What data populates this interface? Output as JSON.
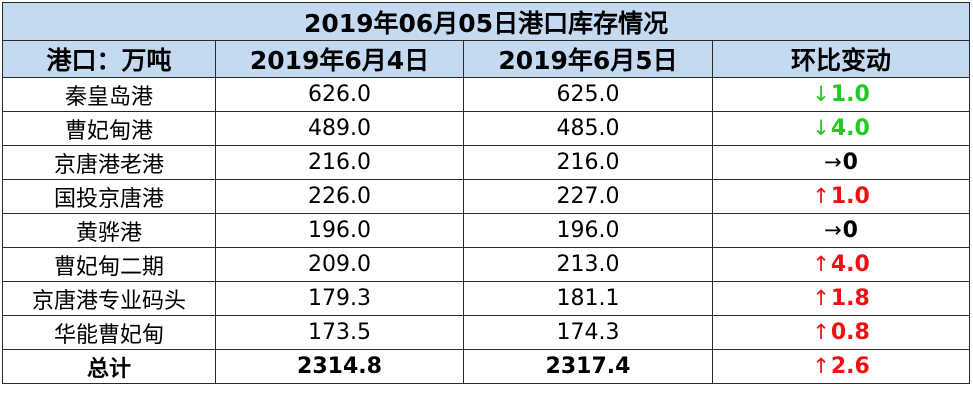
{
  "title": "2019年06月05日港口库存情况",
  "headers": [
    "港口：万吨",
    "2019年6月4日",
    "2019年6月5日",
    "环比变动"
  ],
  "rows": [
    {
      "port": "秦皇岛港",
      "jun4": "626.0",
      "jun5": "625.0",
      "arrow": "↓",
      "change": "1.0",
      "direction": "down"
    },
    {
      "port": "曹妃甸港",
      "jun4": "489.0",
      "jun5": "485.0",
      "arrow": "↓",
      "change": "4.0",
      "direction": "down"
    },
    {
      "port": "京唐港老港",
      "jun4": "216.0",
      "jun5": "216.0",
      "arrow": "→",
      "change": "0",
      "direction": "flat"
    },
    {
      "port": "国投京唐港",
      "jun4": "226.0",
      "jun5": "227.0",
      "arrow": "↑",
      "change": "1.0",
      "direction": "up"
    },
    {
      "port": "黄骅港",
      "jun4": "196.0",
      "jun5": "196.0",
      "arrow": "→",
      "change": "0",
      "direction": "flat"
    },
    {
      "port": "曹妃甸二期",
      "jun4": "209.0",
      "jun5": "213.0",
      "arrow": "↑",
      "change": "4.0",
      "direction": "up"
    },
    {
      "port": "京唐港专业码头",
      "jun4": "179.3",
      "jun5": "181.1",
      "arrow": "↑",
      "change": "1.8",
      "direction": "up"
    },
    {
      "port": "华能曹妃甸",
      "jun4": "173.5",
      "jun5": "174.3",
      "arrow": "↑",
      "change": "0.8",
      "direction": "up"
    }
  ],
  "total": {
    "label": "总计",
    "jun4": "2314.8",
    "jun5": "2317.4",
    "arrow": "↑",
    "change": "2.6",
    "direction": "up"
  },
  "colors": {
    "header_bg": "#c5d9f1",
    "up": "#ee1111",
    "down": "#22c922",
    "flat": "#000000",
    "border": "#2b2b2b"
  }
}
